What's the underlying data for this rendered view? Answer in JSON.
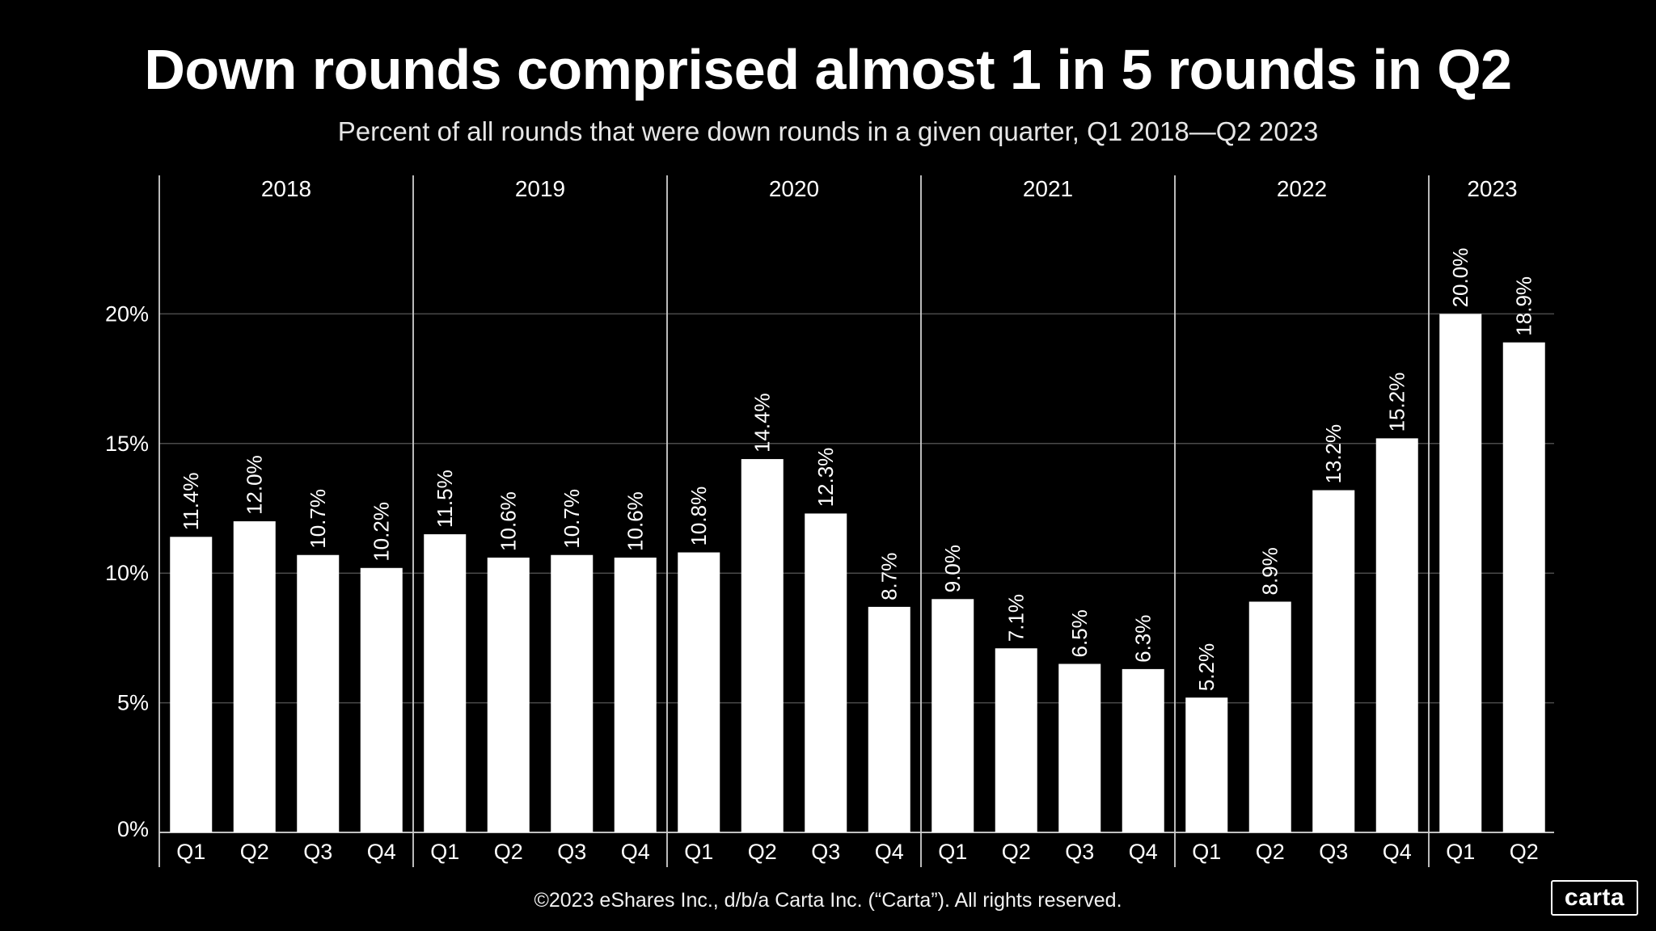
{
  "title": "Down rounds comprised almost 1 in 5 rounds in Q2",
  "subtitle": "Percent of all rounds that were down rounds in a given quarter, Q1 2018—Q2 2023",
  "footer": "©2023 eShares Inc., d/b/a Carta Inc. (“Carta”). All rights reserved.",
  "logo": "carta",
  "chart_data": {
    "type": "bar",
    "title": "Down rounds comprised almost 1 in 5 rounds in Q2",
    "subtitle": "Percent of all rounds that were down rounds in a given quarter, Q1 2018—Q2 2023",
    "ylim": [
      0,
      25
    ],
    "yticks": [
      0,
      5,
      10,
      15,
      20
    ],
    "ytick_labels": [
      "0%",
      "5%",
      "10%",
      "15%",
      "20%"
    ],
    "grid": true,
    "bar_color": "#ffffff",
    "background": "#000000",
    "groups": [
      {
        "year": "2018",
        "quarters": [
          "Q1",
          "Q2",
          "Q3",
          "Q4"
        ],
        "values": [
          11.4,
          12.0,
          10.7,
          10.2
        ],
        "labels": [
          "11.4%",
          "12.0%",
          "10.7%",
          "10.2%"
        ]
      },
      {
        "year": "2019",
        "quarters": [
          "Q1",
          "Q2",
          "Q3",
          "Q4"
        ],
        "values": [
          11.5,
          10.6,
          10.7,
          10.6
        ],
        "labels": [
          "11.5%",
          "10.6%",
          "10.7%",
          "10.6%"
        ]
      },
      {
        "year": "2020",
        "quarters": [
          "Q1",
          "Q2",
          "Q3",
          "Q4"
        ],
        "values": [
          10.8,
          14.4,
          12.3,
          8.7
        ],
        "labels": [
          "10.8%",
          "14.4%",
          "12.3%",
          "8.7%"
        ]
      },
      {
        "year": "2021",
        "quarters": [
          "Q1",
          "Q2",
          "Q3",
          "Q4"
        ],
        "values": [
          9.0,
          7.1,
          6.5,
          6.3
        ],
        "labels": [
          "9.0%",
          "7.1%",
          "6.5%",
          "6.3%"
        ]
      },
      {
        "year": "2022",
        "quarters": [
          "Q1",
          "Q2",
          "Q3",
          "Q4"
        ],
        "values": [
          5.2,
          8.9,
          13.2,
          15.2
        ],
        "labels": [
          "5.2%",
          "8.9%",
          "13.2%",
          "15.2%"
        ]
      },
      {
        "year": "2023",
        "quarters": [
          "Q1",
          "Q2"
        ],
        "values": [
          20.0,
          18.9
        ],
        "labels": [
          "20.0%",
          "18.9%"
        ]
      }
    ]
  }
}
